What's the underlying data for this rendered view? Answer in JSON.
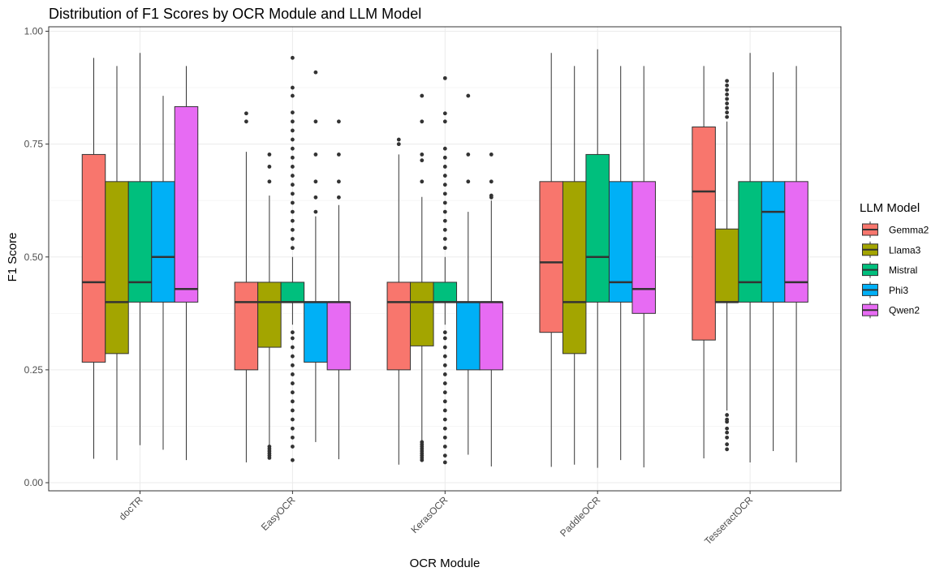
{
  "chart_data": {
    "type": "boxplot",
    "title": "Distribution of F1 Scores by OCR Module and LLM Model",
    "xlabel": "OCR Module",
    "ylabel": "F1 Score",
    "ylim": [
      0,
      1
    ],
    "yticks": [
      "0.00",
      "0.25",
      "0.50",
      "0.75",
      "1.00"
    ],
    "ytick_values": [
      0,
      0.25,
      0.5,
      0.75,
      1.0
    ],
    "grid": true,
    "legend": {
      "title": "LLM Model",
      "position": "right"
    },
    "categories": [
      "docTR",
      "EasyOCR",
      "KerasOCR",
      "PaddleOCR",
      "TesseractOCR"
    ],
    "series": [
      {
        "name": "Gemma2",
        "color": "#F8766D",
        "boxes": [
          {
            "q1": 0.267,
            "median": 0.444,
            "q3": 0.727,
            "lower": 0.053,
            "upper": 0.941,
            "outliers": []
          },
          {
            "q1": 0.25,
            "median": 0.4,
            "q3": 0.444,
            "lower": 0.045,
            "upper": 0.733,
            "outliers": [
              0.8,
              0.818
            ]
          },
          {
            "q1": 0.25,
            "median": 0.4,
            "q3": 0.444,
            "lower": 0.04,
            "upper": 0.727,
            "outliers": [
              0.75,
              0.76
            ]
          },
          {
            "q1": 0.333,
            "median": 0.488,
            "q3": 0.667,
            "lower": 0.035,
            "upper": 0.952,
            "outliers": []
          },
          {
            "q1": 0.316,
            "median": 0.645,
            "q3": 0.788,
            "lower": 0.054,
            "upper": 0.923,
            "outliers": []
          }
        ]
      },
      {
        "name": "Llama3",
        "color": "#A3A500",
        "boxes": [
          {
            "q1": 0.286,
            "median": 0.4,
            "q3": 0.667,
            "lower": 0.05,
            "upper": 0.923,
            "outliers": []
          },
          {
            "q1": 0.3,
            "median": 0.4,
            "q3": 0.444,
            "lower": 0.055,
            "upper": 0.636,
            "outliers": [
              0.055,
              0.06,
              0.065,
              0.07,
              0.075,
              0.08,
              0.667,
              0.7,
              0.727
            ]
          },
          {
            "q1": 0.303,
            "median": 0.4,
            "q3": 0.444,
            "lower": 0.048,
            "upper": 0.633,
            "outliers": [
              0.05,
              0.055,
              0.06,
              0.065,
              0.07,
              0.075,
              0.08,
              0.085,
              0.09,
              0.667,
              0.714,
              0.727,
              0.8,
              0.857
            ]
          },
          {
            "q1": 0.286,
            "median": 0.4,
            "q3": 0.667,
            "lower": 0.04,
            "upper": 0.923,
            "outliers": []
          },
          {
            "q1": 0.4,
            "median": 0.4,
            "q3": 0.562,
            "lower": 0.16,
            "upper": 0.8,
            "outliers": [
              0.074,
              0.085,
              0.1,
              0.111,
              0.12,
              0.135,
              0.14,
              0.15,
              0.81,
              0.82,
              0.83,
              0.84,
              0.85,
              0.86,
              0.87,
              0.88,
              0.89
            ]
          }
        ]
      },
      {
        "name": "Mistral",
        "color": "#00BF7D",
        "boxes": [
          {
            "q1": 0.4,
            "median": 0.444,
            "q3": 0.667,
            "lower": 0.083,
            "upper": 0.952,
            "outliers": []
          },
          {
            "q1": 0.4,
            "median": 0.4,
            "q3": 0.444,
            "lower": 0.35,
            "upper": 0.5,
            "outliers": [
              0.05,
              0.08,
              0.1,
              0.12,
              0.14,
              0.16,
              0.18,
              0.2,
              0.22,
              0.24,
              0.26,
              0.28,
              0.3,
              0.32,
              0.333,
              0.52,
              0.54,
              0.56,
              0.58,
              0.6,
              0.62,
              0.64,
              0.66,
              0.68,
              0.7,
              0.72,
              0.74,
              0.76,
              0.78,
              0.8,
              0.82,
              0.857,
              0.875,
              0.941
            ]
          },
          {
            "q1": 0.4,
            "median": 0.4,
            "q3": 0.444,
            "lower": 0.35,
            "upper": 0.5,
            "outliers": [
              0.045,
              0.06,
              0.08,
              0.1,
              0.12,
              0.14,
              0.16,
              0.18,
              0.2,
              0.22,
              0.24,
              0.26,
              0.28,
              0.3,
              0.32,
              0.333,
              0.52,
              0.54,
              0.56,
              0.58,
              0.6,
              0.62,
              0.64,
              0.66,
              0.68,
              0.7,
              0.72,
              0.74,
              0.8,
              0.818,
              0.896
            ]
          },
          {
            "q1": 0.4,
            "median": 0.5,
            "q3": 0.727,
            "lower": 0.033,
            "upper": 0.96,
            "outliers": []
          },
          {
            "q1": 0.4,
            "median": 0.444,
            "q3": 0.667,
            "lower": 0.045,
            "upper": 0.952,
            "outliers": []
          }
        ]
      },
      {
        "name": "Phi3",
        "color": "#00B0F6",
        "boxes": [
          {
            "q1": 0.4,
            "median": 0.5,
            "q3": 0.667,
            "lower": 0.073,
            "upper": 0.857,
            "outliers": []
          },
          {
            "q1": 0.267,
            "median": 0.4,
            "q3": 0.4,
            "lower": 0.09,
            "upper": 0.59,
            "outliers": [
              0.6,
              0.632,
              0.667,
              0.727,
              0.8,
              0.909
            ]
          },
          {
            "q1": 0.25,
            "median": 0.4,
            "q3": 0.4,
            "lower": 0.062,
            "upper": 0.6,
            "outliers": [
              0.667,
              0.727,
              0.857
            ]
          },
          {
            "q1": 0.4,
            "median": 0.444,
            "q3": 0.667,
            "lower": 0.05,
            "upper": 0.923,
            "outliers": []
          },
          {
            "q1": 0.4,
            "median": 0.6,
            "q3": 0.667,
            "lower": 0.07,
            "upper": 0.909,
            "outliers": []
          }
        ]
      },
      {
        "name": "Qwen2",
        "color": "#E76BF3",
        "boxes": [
          {
            "q1": 0.4,
            "median": 0.429,
            "q3": 0.833,
            "lower": 0.05,
            "upper": 0.923,
            "outliers": []
          },
          {
            "q1": 0.25,
            "median": 0.4,
            "q3": 0.4,
            "lower": 0.052,
            "upper": 0.615,
            "outliers": [
              0.632,
              0.667,
              0.727,
              0.8
            ]
          },
          {
            "q1": 0.25,
            "median": 0.4,
            "q3": 0.4,
            "lower": 0.036,
            "upper": 0.625,
            "outliers": [
              0.632,
              0.636,
              0.667,
              0.727
            ]
          },
          {
            "q1": 0.375,
            "median": 0.429,
            "q3": 0.667,
            "lower": 0.034,
            "upper": 0.923,
            "outliers": []
          },
          {
            "q1": 0.4,
            "median": 0.444,
            "q3": 0.667,
            "lower": 0.045,
            "upper": 0.923,
            "outliers": []
          }
        ]
      }
    ]
  }
}
